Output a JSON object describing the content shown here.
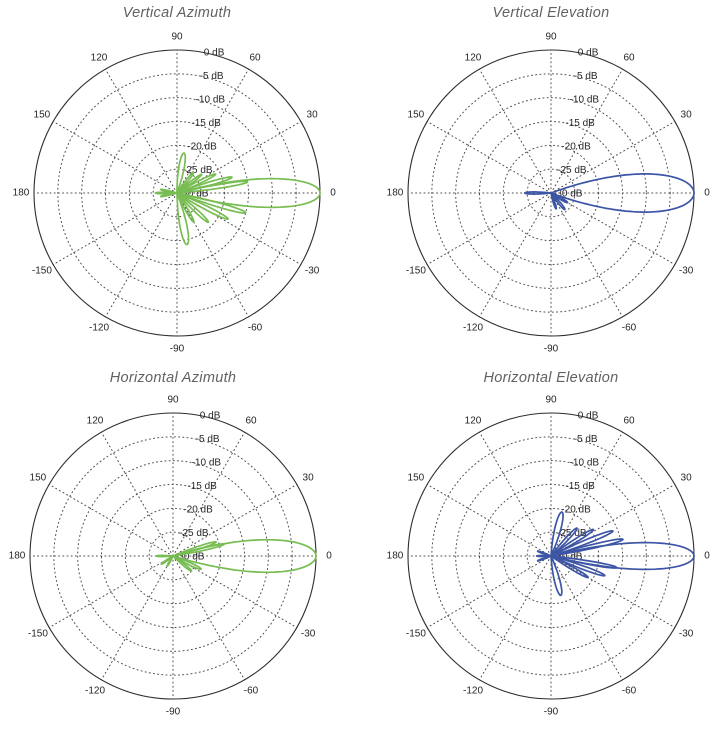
{
  "figure": {
    "background": "#ffffff",
    "title_color": "#5f6163",
    "tick_label_color": "#262626",
    "grid_color": "#4d4d4d",
    "axis_color": "#2e2e2e"
  },
  "chart_data": [
    {
      "type": "polar-line",
      "title": "Vertical Azimuth",
      "series_color": "#77bd52",
      "units": "dB",
      "legend": "none",
      "grid": "dotted",
      "angle_ticks_deg": [
        0,
        30,
        60,
        90,
        120,
        150,
        180,
        -150,
        -120,
        -90,
        -60,
        -30
      ],
      "radial_tick_labels": [
        "0 dB",
        "-5 dB",
        "-10 dB",
        "-15 dB",
        "-20 dB",
        "-25 dB",
        "-30 dB"
      ],
      "r_axis_db": {
        "max": 0,
        "min": -30,
        "step": 5
      },
      "lobes_deg_db": [
        {
          "angle": 0,
          "peak_db": 0,
          "half_width_deg": 15
        },
        {
          "angle": 9,
          "peak_db": -15,
          "half_width_deg": 4
        },
        {
          "angle": 16,
          "peak_db": -18,
          "half_width_deg": 4.5
        },
        {
          "angle": 26,
          "peak_db": -21,
          "half_width_deg": 5
        },
        {
          "angle": 37,
          "peak_db": -23.5,
          "half_width_deg": 5
        },
        {
          "angle": 51,
          "peak_db": -24.5,
          "half_width_deg": 6
        },
        {
          "angle": 80,
          "peak_db": -21.5,
          "half_width_deg": 10
        },
        {
          "angle": -16,
          "peak_db": -15,
          "half_width_deg": 4.5
        },
        {
          "angle": -27,
          "peak_db": -18,
          "half_width_deg": 5
        },
        {
          "angle": -43,
          "peak_db": -21,
          "half_width_deg": 5.5
        },
        {
          "angle": -60,
          "peak_db": -23,
          "half_width_deg": 6
        },
        {
          "angle": -79,
          "peak_db": -19,
          "half_width_deg": 10
        },
        {
          "angle": 168,
          "peak_db": -26.5,
          "half_width_deg": 5
        },
        {
          "angle": 180,
          "peak_db": -25.5,
          "half_width_deg": 5
        },
        {
          "angle": -168,
          "peak_db": -26.5,
          "half_width_deg": 5
        }
      ]
    },
    {
      "type": "polar-line",
      "title": "Vertical Elevation",
      "series_color": "#3d55a5",
      "units": "dB",
      "legend": "none",
      "grid": "dotted",
      "angle_ticks_deg": [
        0,
        30,
        60,
        90,
        120,
        150,
        180,
        -150,
        -120,
        -90,
        -60,
        -30
      ],
      "radial_tick_labels": [
        "0 dB",
        "-5 dB",
        "-10 dB",
        "-15 dB",
        "-20 dB",
        "-25 dB",
        "-30 dB"
      ],
      "r_axis_db": {
        "max": 0,
        "min": -30,
        "step": 5
      },
      "lobes_deg_db": [
        {
          "angle": 0,
          "peak_db": 0,
          "half_width_deg": 20
        },
        {
          "angle": 180,
          "peak_db": -24.5,
          "half_width_deg": 6
        },
        {
          "angle": -30,
          "peak_db": -26,
          "half_width_deg": 7
        },
        {
          "angle": -50,
          "peak_db": -25.5,
          "half_width_deg": 7
        },
        {
          "angle": -72,
          "peak_db": -26.5,
          "half_width_deg": 7
        }
      ]
    },
    {
      "type": "polar-line",
      "title": "Horizontal Azimuth",
      "series_color": "#77bd52",
      "units": "dB",
      "legend": "none",
      "grid": "dotted",
      "angle_ticks_deg": [
        0,
        30,
        60,
        90,
        120,
        150,
        180,
        -150,
        -120,
        -90,
        -60,
        -30
      ],
      "radial_tick_labels": [
        "0 dB",
        "-5 dB",
        "-10 dB",
        "-15 dB",
        "-20 dB",
        "-25 dB",
        "-30 dB"
      ],
      "r_axis_db": {
        "max": 0,
        "min": -30,
        "step": 5
      },
      "lobes_deg_db": [
        {
          "angle": 0,
          "peak_db": 0,
          "half_width_deg": 17
        },
        {
          "angle": 13,
          "peak_db": -19,
          "half_width_deg": 4
        },
        {
          "angle": 18,
          "peak_db": -20.5,
          "half_width_deg": 4.5
        },
        {
          "angle": -25,
          "peak_db": -23.5,
          "half_width_deg": 6
        },
        {
          "angle": -39,
          "peak_db": -25,
          "half_width_deg": 6
        },
        {
          "angle": 180,
          "peak_db": -26.5,
          "half_width_deg": 5
        },
        {
          "angle": -145,
          "peak_db": -27,
          "half_width_deg": 6
        },
        {
          "angle": -120,
          "peak_db": -27.5,
          "half_width_deg": 6
        }
      ]
    },
    {
      "type": "polar-line",
      "title": "Horizontal Elevation",
      "series_color": "#3d55a5",
      "units": "dB",
      "legend": "none",
      "grid": "dotted",
      "angle_ticks_deg": [
        0,
        30,
        60,
        90,
        120,
        150,
        180,
        -150,
        -120,
        -90,
        -60,
        -30
      ],
      "radial_tick_labels": [
        "0 dB",
        "-5 dB",
        "-10 dB",
        "-15 dB",
        "-20 dB",
        "-25 dB",
        "-30 dB"
      ],
      "r_axis_db": {
        "max": 0,
        "min": -30,
        "step": 5
      },
      "lobes_deg_db": [
        {
          "angle": 0,
          "peak_db": 0,
          "half_width_deg": 14
        },
        {
          "angle": 13,
          "peak_db": -14.5,
          "half_width_deg": 4
        },
        {
          "angle": 22,
          "peak_db": -16,
          "half_width_deg": 4.5
        },
        {
          "angle": 32,
          "peak_db": -19.5,
          "half_width_deg": 5
        },
        {
          "angle": 47,
          "peak_db": -22,
          "half_width_deg": 6
        },
        {
          "angle": 76,
          "peak_db": -20.5,
          "half_width_deg": 10
        },
        {
          "angle": -10,
          "peak_db": -16,
          "half_width_deg": 4
        },
        {
          "angle": -20,
          "peak_db": -18,
          "half_width_deg": 4.5
        },
        {
          "angle": -30,
          "peak_db": -21,
          "half_width_deg": 5
        },
        {
          "angle": -76,
          "peak_db": -21.5,
          "half_width_deg": 10
        },
        {
          "angle": 160,
          "peak_db": -27,
          "half_width_deg": 5
        },
        {
          "angle": 180,
          "peak_db": -27,
          "half_width_deg": 5
        },
        {
          "angle": -160,
          "peak_db": -27,
          "half_width_deg": 5
        }
      ]
    }
  ]
}
